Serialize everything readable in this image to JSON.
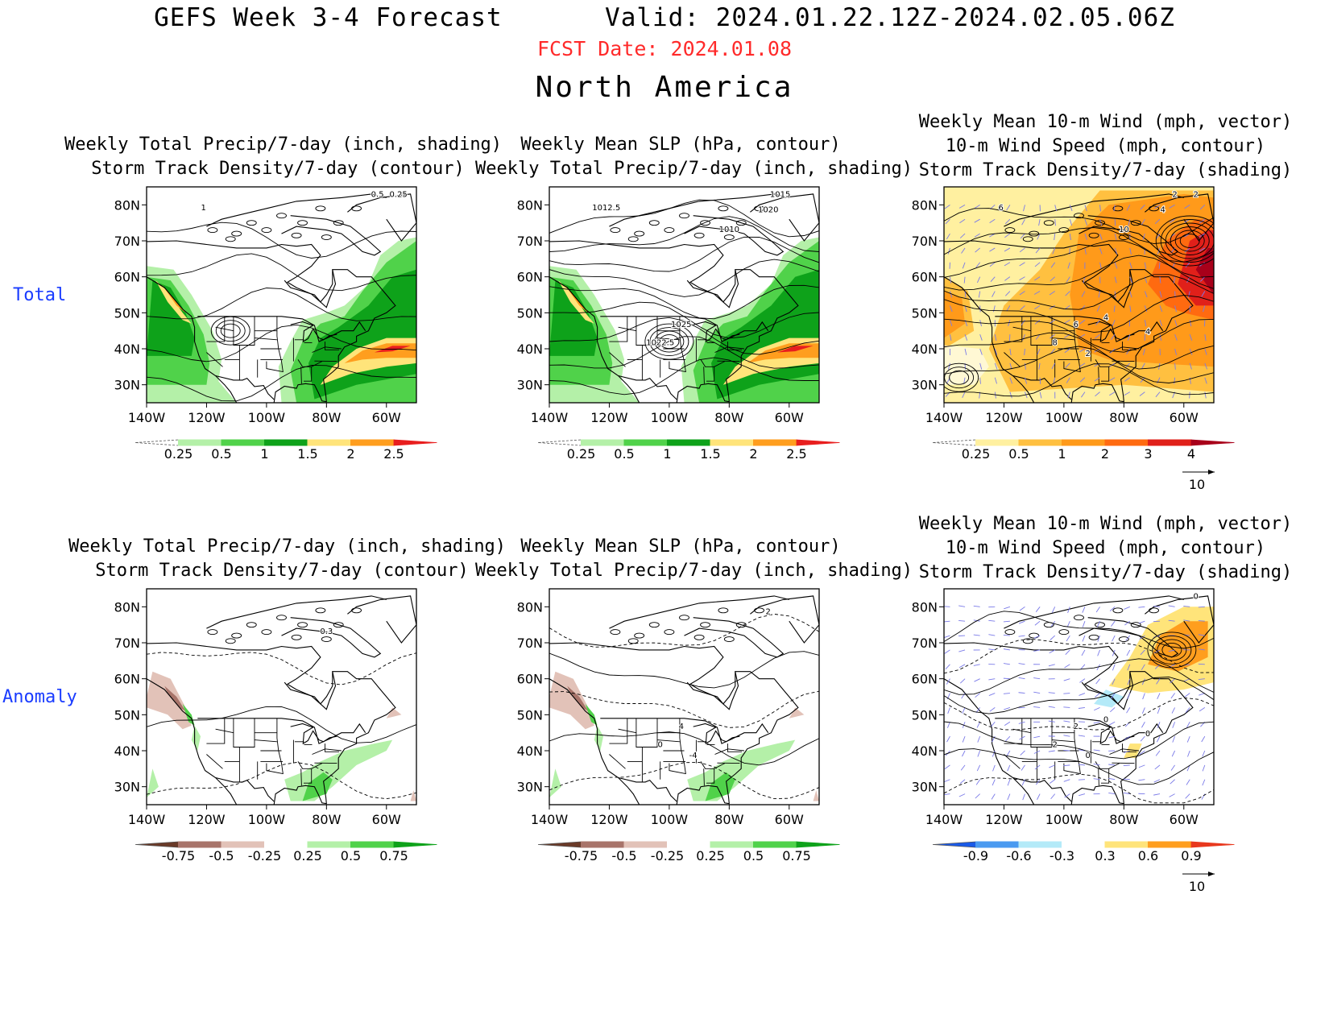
{
  "header": {
    "title": "GEFS Week 3-4 Forecast",
    "valid": "Valid: 2024.01.22.12Z-2024.02.05.06Z",
    "fcst_date": "FCST Date: 2024.01.08",
    "region": "North America",
    "colors": {
      "fcst_date": "#ff2a2a",
      "row_label": "#1a3cff"
    }
  },
  "rows": [
    {
      "label": "Total"
    },
    {
      "label": "Anomaly"
    }
  ],
  "axes": {
    "lat_labels": [
      "80N",
      "70N",
      "60N",
      "50N",
      "40N",
      "30N"
    ],
    "lon_labels": [
      "140W",
      "120W",
      "100W",
      "80W",
      "60W"
    ],
    "lat_values": [
      80,
      70,
      60,
      50,
      40,
      30
    ],
    "lon_values": [
      -140,
      -120,
      -100,
      -80,
      -60
    ],
    "lat_range": [
      25,
      85
    ],
    "lon_range": [
      -140,
      -50
    ]
  },
  "panels": [
    {
      "title_lines": [
        "Weekly Total Precip/7-day (inch, shading)",
        "Storm Track Density/7-day (contour)"
      ],
      "contour_labels": [
        "0.25",
        "0.5",
        "1"
      ],
      "colorbar": {
        "ticks": [
          "0.25",
          "0.5",
          "1",
          "1.5",
          "2",
          "2.5"
        ],
        "colors": [
          "#ffffff",
          "#b4f0a8",
          "#50d24a",
          "#0ea21a",
          "#ffe47a",
          "#ff9e1e",
          "#e81e1e"
        ]
      },
      "shading": "precip_total"
    },
    {
      "title_lines": [
        "Weekly Mean SLP (hPa, contour)",
        "Weekly Total Precip/7-day (inch, shading)"
      ],
      "contour_labels": [
        "1015",
        "1012.5",
        "1010",
        "1020",
        "1025",
        "1022.5"
      ],
      "colorbar": {
        "ticks": [
          "0.25",
          "0.5",
          "1",
          "1.5",
          "2",
          "2.5"
        ],
        "colors": [
          "#ffffff",
          "#b4f0a8",
          "#50d24a",
          "#0ea21a",
          "#ffe47a",
          "#ff9e1e",
          "#e81e1e"
        ]
      },
      "shading": "precip_total"
    },
    {
      "title_lines": [
        "Weekly Mean 10-m Wind (mph, vector)",
        "10-m Wind Speed (mph, contour)",
        "Storm Track Density/7-day (shading)"
      ],
      "contour_labels": [
        "6",
        "10",
        "4",
        "6",
        "8",
        "2",
        "4",
        "4",
        "2",
        "2"
      ],
      "colorbar": {
        "ticks": [
          "0.25",
          "0.5",
          "1",
          "2",
          "3",
          "4"
        ],
        "colors": [
          "#ffffff",
          "#fff0a0",
          "#ffc040",
          "#ff9a1a",
          "#ff6a10",
          "#e0201a",
          "#a8001a"
        ]
      },
      "vector_ref": "10",
      "shading": "storm_total"
    },
    {
      "title_lines": [
        "Weekly Total Precip/7-day (inch, shading)",
        "Storm Track Density/7-day (contour)"
      ],
      "contour_labels": [
        "0.3"
      ],
      "colorbar": {
        "ticks": [
          "-0.75",
          "-0.5",
          "-0.25",
          "0.25",
          "0.5",
          "0.75"
        ],
        "colors": [
          "#6a3a28",
          "#a8746a",
          "#e2c2b8",
          "#ffffff",
          "#b4f0a8",
          "#50d24a",
          "#0ea21a"
        ]
      },
      "shading": "precip_anom"
    },
    {
      "title_lines": [
        "Weekly Mean SLP (hPa, contour)",
        "Weekly Total Precip/7-day (inch, shading)"
      ],
      "contour_labels": [
        "2",
        "4",
        "0",
        "-4"
      ],
      "colorbar": {
        "ticks": [
          "-0.75",
          "-0.5",
          "-0.25",
          "0.25",
          "0.5",
          "0.75"
        ],
        "colors": [
          "#6a3a28",
          "#a8746a",
          "#e2c2b8",
          "#ffffff",
          "#b4f0a8",
          "#50d24a",
          "#0ea21a"
        ]
      },
      "shading": "precip_anom"
    },
    {
      "title_lines": [
        "Weekly Mean 10-m Wind (mph, vector)",
        "10-m Wind Speed (mph, contour)",
        "Storm Track Density/7-day (shading)"
      ],
      "contour_labels": [
        "2",
        "2",
        "0",
        "0",
        "0",
        "0"
      ],
      "colorbar": {
        "ticks": [
          "-0.9",
          "-0.6",
          "-0.3",
          "0.3",
          "0.6",
          "0.9"
        ],
        "colors": [
          "#1a5ae8",
          "#4a9af0",
          "#b4eaf8",
          "#ffffff",
          "#ffe47a",
          "#ff9e1e",
          "#e8381e"
        ]
      },
      "vector_ref": "10",
      "shading": "storm_anom"
    }
  ]
}
